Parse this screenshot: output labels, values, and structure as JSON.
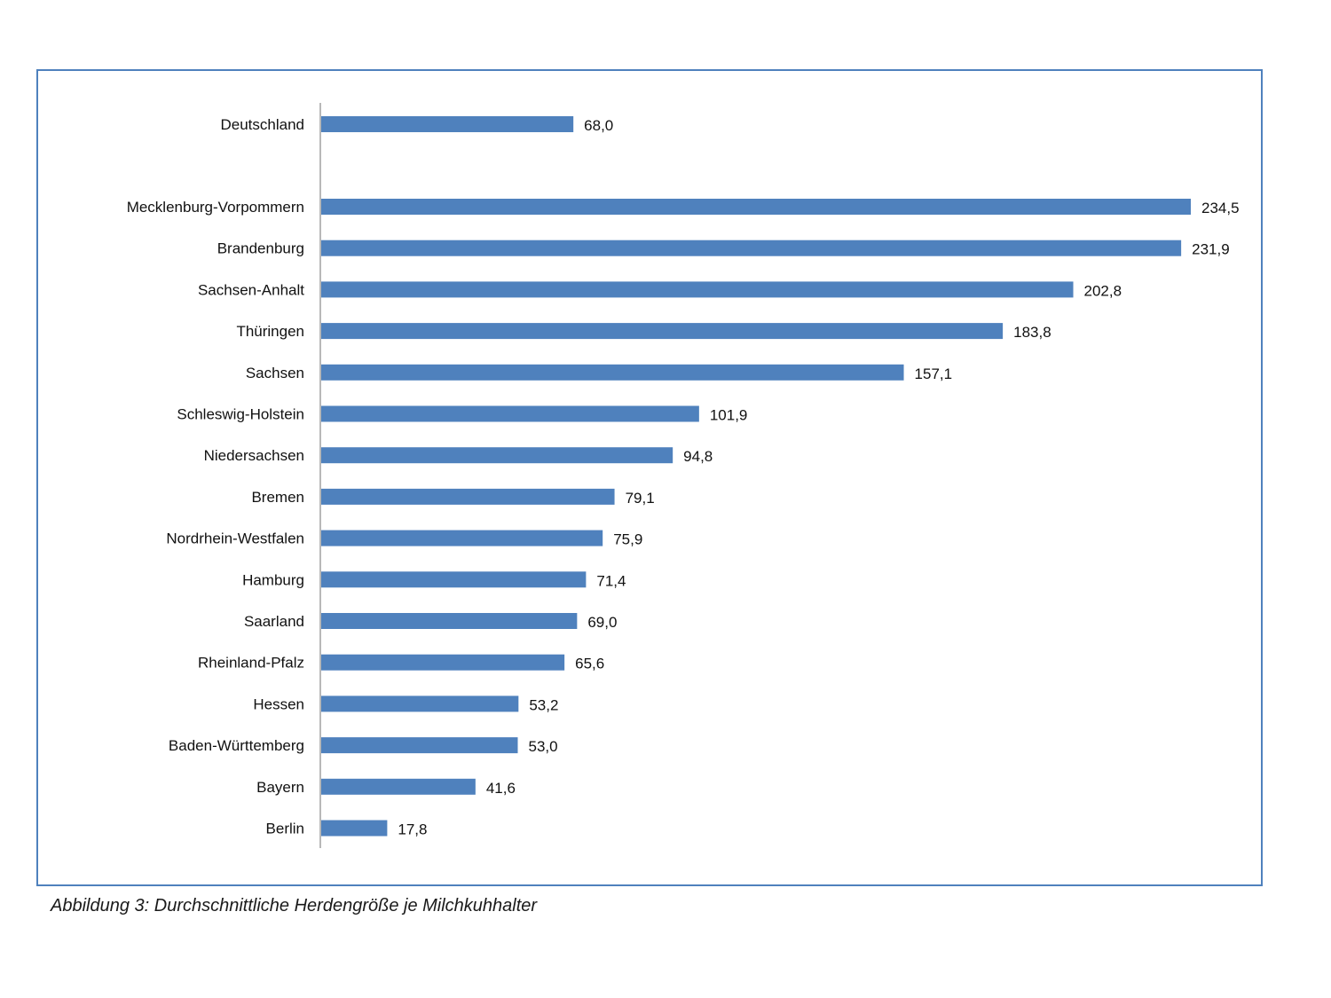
{
  "chart_data": {
    "type": "bar",
    "orientation": "horizontal",
    "categories": [
      "Deutschland",
      "Mecklenburg-Vorpommern",
      "Brandenburg",
      "Sachsen-Anhalt",
      "Thüringen",
      "Sachsen",
      "Schleswig-Holstein",
      "Niedersachsen",
      "Bremen",
      "Nordrhein-Westfalen",
      "Hamburg",
      "Saarland",
      "Rheinland-Pfalz",
      "Hessen",
      "Baden-Württemberg",
      "Bayern",
      "Berlin"
    ],
    "values": [
      68.0,
      234.5,
      231.9,
      202.8,
      183.8,
      157.1,
      101.9,
      94.8,
      79.1,
      75.9,
      71.4,
      69.0,
      65.6,
      53.2,
      53.0,
      41.6,
      17.8
    ],
    "value_labels": [
      "68,0",
      "234,5",
      "231,9",
      "202,8",
      "183,8",
      "157,1",
      "101,9",
      "94,8",
      "79,1",
      "75,9",
      "71,4",
      "69,0",
      "65,6",
      "53,2",
      "53,0",
      "41,6",
      "17,8"
    ],
    "xlim": [
      0,
      234.5
    ],
    "bar_color": "#4F81BD",
    "frame_color": "#4F81BD",
    "grid": false,
    "title": "",
    "xlabel": "",
    "ylabel": ""
  },
  "caption": "Abbildung 3: Durchschnittliche Herdengröße je Milchkuhhalter"
}
